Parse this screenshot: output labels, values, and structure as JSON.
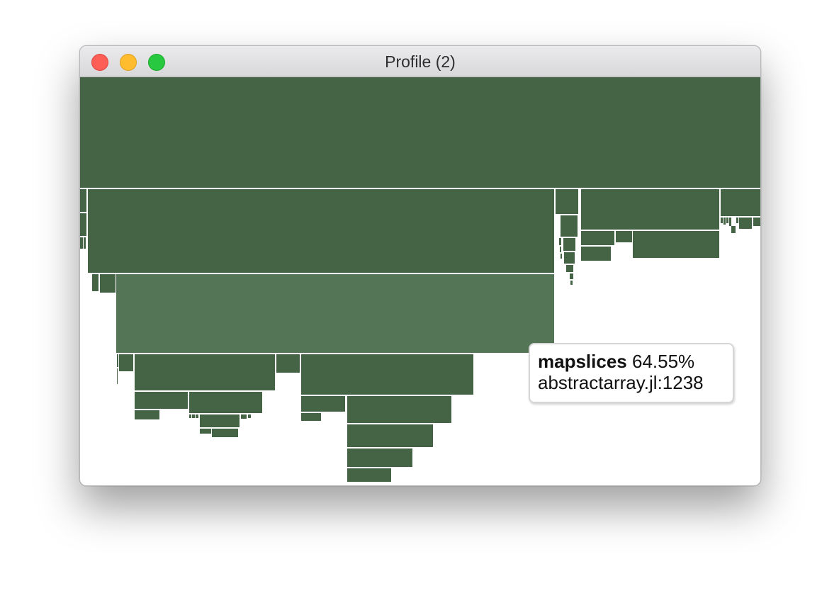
{
  "window": {
    "title": "Profile (2)",
    "controls": {
      "close": "#fd5f57",
      "minimize": "#febc2e",
      "zoom": "#28c840"
    }
  },
  "flamegraph": {
    "frame_color": "#456446",
    "highlight_color": "#557656"
  },
  "tooltip": {
    "function": "mapslices",
    "percent": "64.55%",
    "location": "abstractarray.jl:1238"
  }
}
